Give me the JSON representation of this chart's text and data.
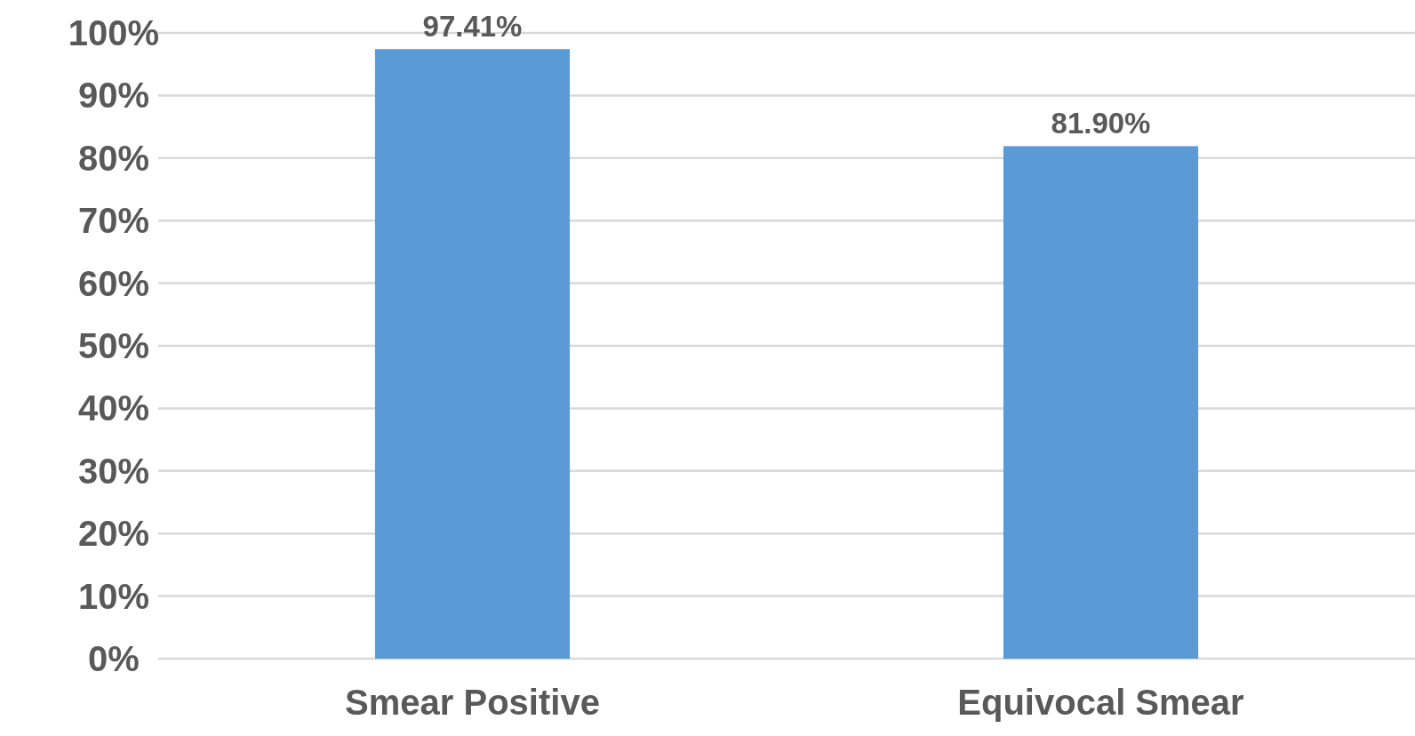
{
  "chart_data": {
    "type": "bar",
    "categories": [
      "Smear Positive",
      "Equivocal Smear"
    ],
    "values": [
      97.41,
      81.9
    ],
    "value_labels": [
      "97.41%",
      "81.90%"
    ],
    "color": "#5b9bd5",
    "ylim": [
      0,
      100
    ],
    "yticks": [
      {
        "value": 0,
        "label": "0%"
      },
      {
        "value": 10,
        "label": "10%"
      },
      {
        "value": 20,
        "label": "20%"
      },
      {
        "value": 30,
        "label": "30%"
      },
      {
        "value": 40,
        "label": "40%"
      },
      {
        "value": 50,
        "label": "50%"
      },
      {
        "value": 60,
        "label": "60%"
      },
      {
        "value": 70,
        "label": "70%"
      },
      {
        "value": 80,
        "label": "80%"
      },
      {
        "value": 90,
        "label": "90%"
      },
      {
        "value": 100,
        "label": "100%"
      }
    ],
    "grid": "y"
  }
}
